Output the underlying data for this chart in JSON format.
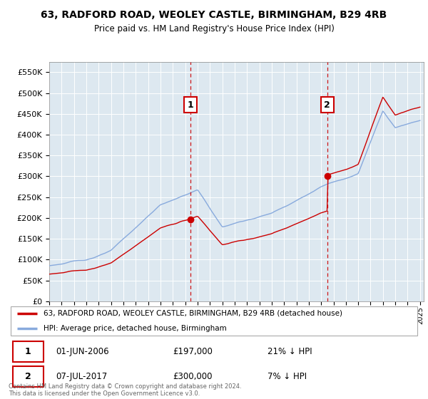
{
  "title": "63, RADFORD ROAD, WEOLEY CASTLE, BIRMINGHAM, B29 4RB",
  "subtitle": "Price paid vs. HM Land Registry's House Price Index (HPI)",
  "ylabel_ticks": [
    "£0",
    "£50K",
    "£100K",
    "£150K",
    "£200K",
    "£250K",
    "£300K",
    "£350K",
    "£400K",
    "£450K",
    "£500K",
    "£550K"
  ],
  "ytick_values": [
    0,
    50000,
    100000,
    150000,
    200000,
    250000,
    300000,
    350000,
    400000,
    450000,
    500000,
    550000
  ],
  "ylim": [
    0,
    575000
  ],
  "legend_label_red": "63, RADFORD ROAD, WEOLEY CASTLE, BIRMINGHAM, B29 4RB (detached house)",
  "legend_label_blue": "HPI: Average price, detached house, Birmingham",
  "annotation1_date": "01-JUN-2006",
  "annotation1_price": "£197,000",
  "annotation1_hpi": "21% ↓ HPI",
  "annotation2_date": "07-JUL-2017",
  "annotation2_price": "£300,000",
  "annotation2_hpi": "7% ↓ HPI",
  "footer": "Contains HM Land Registry data © Crown copyright and database right 2024.\nThis data is licensed under the Open Government Licence v3.0.",
  "red_color": "#cc0000",
  "blue_color": "#88aadd",
  "vline_color": "#cc0000",
  "plot_bg": "#dde8f0",
  "sale1_year": 2006.42,
  "sale1_price": 197000,
  "sale2_year": 2017.5,
  "sale2_price": 300000
}
